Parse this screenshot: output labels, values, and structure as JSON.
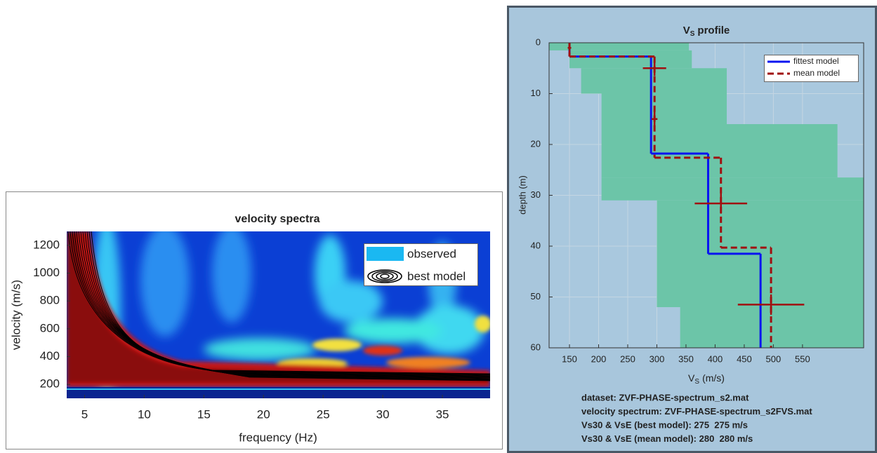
{
  "chart_data": [
    {
      "type": "contour",
      "title": "velocity spectra",
      "xlabel": "frequency (Hz)",
      "ylabel": "velocity (m/s)",
      "xlim": [
        3.5,
        39
      ],
      "ylim": [
        100,
        1300
      ],
      "xticks": [
        5,
        10,
        15,
        20,
        25,
        30,
        35
      ],
      "yticks": [
        200,
        400,
        600,
        800,
        1000,
        1200
      ],
      "grid": false,
      "legend_items": [
        {
          "name": "observed",
          "color": "#1ab8f2"
        },
        {
          "name": "best model",
          "color": "#000000"
        }
      ]
    },
    {
      "type": "step",
      "title": {
        "base": "V",
        "subscript": "S",
        "text": "profile"
      },
      "xlabel": {
        "base": "V",
        "subscript": "S",
        "text": "(m/s)"
      },
      "ylabel": "depth (m)",
      "xlim": [
        115,
        655
      ],
      "ylim": [
        0,
        60
      ],
      "y_reversed": true,
      "xticks": [
        150,
        200,
        250,
        300,
        350,
        400,
        450,
        500,
        550
      ],
      "yticks": [
        0,
        10,
        20,
        30,
        40,
        50,
        60
      ],
      "grid": true,
      "legend_position": "upper right",
      "search_space": {
        "color": "#6cc5a8",
        "depth_top": [
          0,
          1.5,
          5,
          10,
          16,
          26.5,
          31,
          52
        ],
        "depth_bottom": [
          1.5,
          5,
          10,
          16,
          26.5,
          31,
          52,
          60
        ],
        "vs_min": [
          115,
          150,
          170,
          205,
          205,
          205,
          300,
          340
        ],
        "vs_max": [
          355,
          360,
          420,
          420,
          610,
          655,
          655,
          655
        ]
      },
      "series": [
        {
          "name": "fittest model",
          "color": "#0a14f0",
          "dash": false,
          "values": [
            150,
            290,
            388,
            478
          ],
          "depth_top": [
            0,
            2.7,
            21.8,
            41.5
          ]
        },
        {
          "name": "mean model",
          "color": "#a01010",
          "dash": true,
          "values": [
            150,
            296,
            410,
            496
          ],
          "depth_top": [
            0,
            2.7,
            22.6,
            40.3
          ],
          "errorbars": {
            "vs": [
              150,
              296,
              296,
              410,
              496
            ],
            "depth": [
              1,
              5,
              15,
              31.6,
              51.5
            ],
            "vs_err": [
              3,
              20,
              5,
              45,
              57
            ],
            "depth_err": [
              1,
              1.5,
              1.5,
              2,
              2
            ]
          }
        }
      ],
      "notes": [
        "dataset: ZVF-PHASE-spectrum_s2.mat",
        "velocity spectrum: ZVF-PHASE-spectrum_s2FVS.mat",
        "Vs30 & VsE (best model): 275  275 m/s",
        "Vs30 & VsE (mean model): 280  280 m/s"
      ]
    }
  ]
}
